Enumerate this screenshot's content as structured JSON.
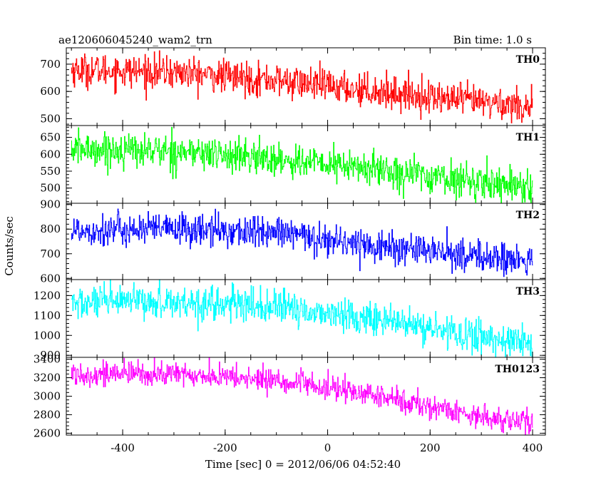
{
  "header": {
    "title": "ae120606045240_wam2_trn",
    "bin_time": "Bin time: 1.0 s"
  },
  "chart_data": {
    "type": "line",
    "xlabel": "Time [sec] 0 = 2012/06/06 04:52:40",
    "ylabel": "Counts/sec",
    "xlim": [
      -510,
      425
    ],
    "xticks": [
      -400,
      -200,
      0,
      200,
      400
    ],
    "x_range": [
      -500,
      400
    ],
    "bin_time_s": 1.0,
    "grid": false,
    "panels": [
      {
        "name": "TH0",
        "color": "#ff0000",
        "ylim": [
          475,
          760
        ],
        "yticks": [
          500,
          600,
          700
        ],
        "trend": [
          [
            -500,
            680
          ],
          [
            -300,
            670
          ],
          [
            -100,
            640
          ],
          [
            100,
            600
          ],
          [
            250,
            570
          ],
          [
            400,
            545
          ]
        ],
        "noise_sd": 30,
        "y_range_shown": [
          470,
          760
        ]
      },
      {
        "name": "TH1",
        "color": "#00ff00",
        "ylim": [
          455,
          685
        ],
        "yticks": [
          500,
          550,
          600,
          650
        ],
        "trend": [
          [
            -500,
            615
          ],
          [
            -300,
            610
          ],
          [
            -100,
            585
          ],
          [
            100,
            555
          ],
          [
            250,
            525
          ],
          [
            400,
            505
          ]
        ],
        "noise_sd": 25,
        "y_range_shown": [
          455,
          680
        ]
      },
      {
        "name": "TH2",
        "color": "#0000ff",
        "ylim": [
          595,
          905
        ],
        "yticks": [
          600,
          700,
          800,
          900
        ],
        "trend": [
          [
            -500,
            795
          ],
          [
            -300,
            800
          ],
          [
            -100,
            785
          ],
          [
            100,
            730
          ],
          [
            250,
            700
          ],
          [
            400,
            665
          ]
        ],
        "noise_sd": 33,
        "y_range_shown": [
          600,
          905
        ]
      },
      {
        "name": "TH3",
        "color": "#00ffff",
        "ylim": [
          890,
          1280
        ],
        "yticks": [
          900,
          1000,
          1100,
          1200
        ],
        "trend": [
          [
            -500,
            1160
          ],
          [
            -300,
            1170
          ],
          [
            -100,
            1140
          ],
          [
            100,
            1080
          ],
          [
            250,
            1010
          ],
          [
            400,
            960
          ]
        ],
        "noise_sd": 42,
        "y_range_shown": [
          890,
          1280
        ]
      },
      {
        "name": "TH0123",
        "color": "#ff00ff",
        "ylim": [
          2580,
          3420
        ],
        "yticks": [
          2600,
          2800,
          3000,
          3200,
          3400
        ],
        "trend": [
          [
            -500,
            3240
          ],
          [
            -300,
            3240
          ],
          [
            -100,
            3170
          ],
          [
            100,
            3000
          ],
          [
            250,
            2830
          ],
          [
            400,
            2700
          ]
        ],
        "noise_sd": 65,
        "y_range_shown": [
          2580,
          3420
        ]
      }
    ]
  }
}
